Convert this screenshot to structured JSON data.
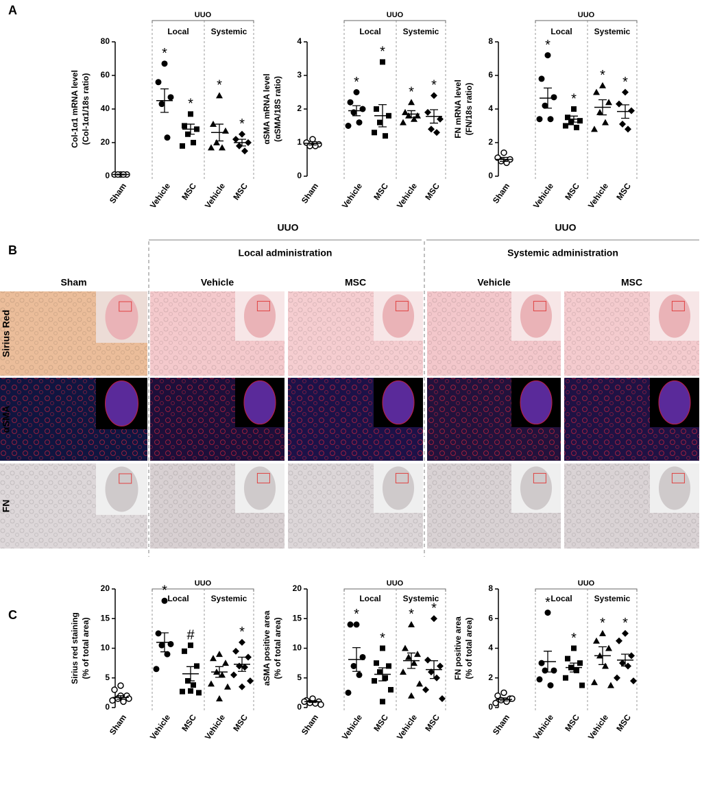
{
  "panels": [
    "A",
    "B",
    "C"
  ],
  "chart_data": [
    {
      "type": "dot",
      "ylabel": [
        "Col-1α1 mRNA level",
        "(Col-1α1/18s ratio)"
      ],
      "group": "UUO",
      "subgroups": [
        "Local",
        "Systemic"
      ],
      "categories": [
        "Sham",
        "Vehicle",
        "MSC",
        "Vehicle",
        "MSC"
      ],
      "ylim": [
        0,
        80
      ],
      "yticks": [
        0,
        20,
        40,
        60,
        80
      ],
      "values": [
        [
          1,
          1,
          1,
          1,
          1
        ],
        [
          67,
          56,
          47,
          43,
          23
        ],
        [
          37,
          30,
          28,
          25,
          20,
          18
        ],
        [
          48,
          31,
          27,
          20,
          17,
          17
        ],
        [
          25,
          22,
          20,
          18,
          15
        ]
      ],
      "means": [
        1,
        45,
        28,
        26,
        20
      ],
      "sems": [
        0.2,
        7,
        3,
        5,
        2
      ],
      "annotations": [
        null,
        "*",
        "*",
        "*",
        "*"
      ]
    },
    {
      "type": "dot",
      "ylabel": [
        "αSMA mRNA level",
        "(αSMA/18S ratio)"
      ],
      "group": "UUO",
      "subgroups": [
        "Local",
        "Systemic"
      ],
      "categories": [
        "Sham",
        "Vehicle",
        "MSC",
        "Vehicle",
        "MSC"
      ],
      "ylim": [
        0,
        4
      ],
      "yticks": [
        0,
        1,
        2,
        3,
        4
      ],
      "values": [
        [
          1.1,
          1.0,
          0.95,
          0.9,
          0.9
        ],
        [
          2.5,
          2.2,
          2.0,
          1.9,
          1.6,
          1.5
        ],
        [
          3.4,
          2.0,
          1.8,
          1.6,
          1.2,
          1.3
        ],
        [
          2.2,
          1.9,
          1.8,
          1.8,
          1.7,
          1.6
        ],
        [
          2.4,
          1.9,
          1.7,
          1.4,
          1.3
        ]
      ],
      "means": [
        0.98,
        1.95,
        1.8,
        1.85,
        1.78
      ],
      "sems": [
        0.05,
        0.15,
        0.33,
        0.1,
        0.2
      ],
      "annotations": [
        null,
        "*",
        "*",
        "*",
        "*"
      ]
    },
    {
      "type": "dot",
      "ylabel": [
        "FN mRNA level",
        "(FN/18s ratio)"
      ],
      "group": "UUO",
      "subgroups": [
        "Local",
        "Systemic"
      ],
      "categories": [
        "Sham",
        "Vehicle",
        "MSC",
        "Vehicle",
        "MSC"
      ],
      "ylim": [
        0,
        8
      ],
      "yticks": [
        0,
        2,
        4,
        6,
        8
      ],
      "values": [
        [
          1.4,
          1.1,
          1.0,
          0.9,
          0.8
        ],
        [
          7.2,
          5.8,
          4.7,
          4.2,
          3.4,
          3.4
        ],
        [
          4.0,
          3.5,
          3.3,
          3.2,
          2.9,
          3.0
        ],
        [
          5.4,
          5.0,
          4.4,
          3.8,
          3.2,
          2.8
        ],
        [
          5.0,
          4.3,
          3.9,
          3.1,
          2.8
        ]
      ],
      "means": [
        1.0,
        4.65,
        3.4,
        4.1,
        3.85
      ],
      "sems": [
        0.12,
        0.6,
        0.18,
        0.45,
        0.4
      ],
      "annotations": [
        null,
        "*",
        "*",
        "*",
        "*"
      ]
    },
    {
      "type": "dot",
      "ylabel": [
        "Sirius red staining",
        "(% of total area)"
      ],
      "group": "UUO",
      "subgroups": [
        "Local",
        "Systemic"
      ],
      "categories": [
        "Sham",
        "Vehicle",
        "MSC",
        "Vehicle",
        "MSC"
      ],
      "ylim": [
        0,
        20
      ],
      "yticks": [
        0,
        5,
        10,
        15,
        20
      ],
      "values": [
        [
          3.7,
          3,
          2,
          1.5,
          1,
          1.2,
          1.5,
          2
        ],
        [
          18,
          12.5,
          10.7,
          10.5,
          9,
          6.5
        ],
        [
          10.5,
          9.5,
          7,
          4.5,
          3.8,
          2.7,
          2.5,
          2.8
        ],
        [
          9,
          8.3,
          7.5,
          6,
          5.5,
          4,
          3.5,
          1.5
        ],
        [
          11,
          9.5,
          8.5,
          7,
          6.8,
          5.5,
          4.5,
          3.5
        ]
      ],
      "means": [
        1.7,
        11,
        5.7,
        6,
        7.3
      ],
      "sems": [
        0.3,
        1.6,
        1.2,
        0.9,
        1.2
      ],
      "annotations": [
        null,
        "*",
        "#",
        null,
        "*"
      ]
    },
    {
      "type": "dot",
      "ylabel": [
        "aSMA positive area",
        "(% of total area)"
      ],
      "group": "UUO",
      "subgroups": [
        "Local",
        "Systemic"
      ],
      "categories": [
        "Sham",
        "Vehicle",
        "MSC",
        "Vehicle",
        "MSC"
      ],
      "ylim": [
        0,
        20
      ],
      "yticks": [
        0,
        5,
        10,
        15,
        20
      ],
      "values": [
        [
          1.5,
          1.2,
          1,
          0.8,
          0.7,
          1,
          0.5
        ],
        [
          14,
          14,
          8.5,
          7,
          5.5,
          2.5
        ],
        [
          10,
          7.5,
          7,
          6,
          5,
          4.5,
          3,
          1
        ],
        [
          14,
          10,
          9,
          8.5,
          7.5,
          6,
          4,
          2
        ],
        [
          15,
          8,
          7,
          6,
          5,
          3,
          1.5
        ]
      ],
      "means": [
        1,
        8.1,
        5.6,
        7.9,
        6.4
      ],
      "sems": [
        0.15,
        2,
        1.1,
        1.3,
        1.5
      ],
      "annotations": [
        null,
        "*",
        "*",
        "*",
        "*"
      ]
    },
    {
      "type": "dot",
      "ylabel": [
        "FN positive area",
        "(% of total area)"
      ],
      "group": "UUO",
      "subgroups": [
        "Local",
        "Systemic"
      ],
      "categories": [
        "Sham",
        "Vehicle",
        "MSC",
        "Vehicle",
        "MSC"
      ],
      "ylim": [
        0,
        8
      ],
      "yticks": [
        0,
        2,
        4,
        6,
        8
      ],
      "values": [
        [
          1.0,
          0.8,
          0.6,
          0.5,
          0.4,
          0.3,
          0.6
        ],
        [
          6.4,
          3.0,
          2.5,
          2.5,
          1.5,
          1.9
        ],
        [
          4.0,
          3.3,
          3.0,
          2.7,
          2.5,
          2.0,
          1.5
        ],
        [
          5.0,
          4.5,
          4.0,
          3.5,
          2.8,
          1.7,
          1.5
        ],
        [
          5,
          4.5,
          3.5,
          3,
          2.8,
          2,
          1.8
        ]
      ],
      "means": [
        0.55,
        3.1,
        2.7,
        3.5,
        3.2
      ],
      "sems": [
        0.1,
        0.7,
        0.3,
        0.6,
        0.4
      ],
      "annotations": [
        null,
        "*",
        "*",
        "*",
        "*"
      ]
    }
  ],
  "histology": {
    "groups": [
      {
        "title": "UUO",
        "label": "Local administration"
      },
      {
        "title": "UUO",
        "label": "Systemic administration"
      }
    ],
    "columns": [
      "Sham",
      "Vehicle",
      "MSC",
      "Vehicle",
      "MSC"
    ],
    "rows": [
      "Sirius Red",
      "αSMA",
      "FN"
    ]
  }
}
